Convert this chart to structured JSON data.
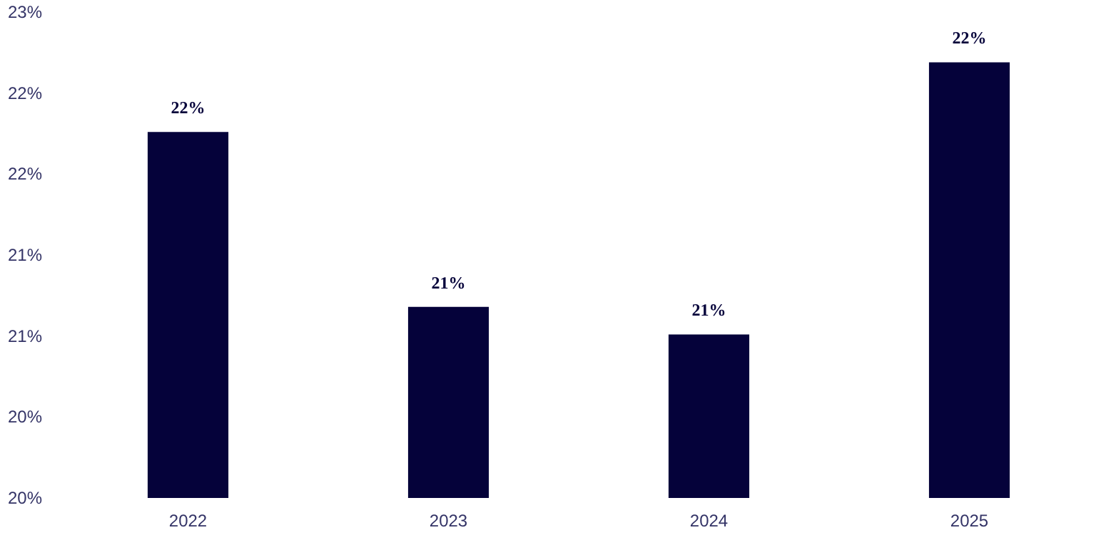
{
  "chart_data": {
    "type": "bar",
    "categories": [
      "2022",
      "2023",
      "2024",
      "2025"
    ],
    "values": [
      22.06,
      20.98,
      20.81,
      22.49
    ],
    "value_labels": [
      "22%",
      "21%",
      "21%",
      "22%"
    ],
    "color": "#05023a",
    "ylim": [
      19.8,
      22.8
    ],
    "yticks": [
      {
        "value": 19.8,
        "label": "20%"
      },
      {
        "value": 20.3,
        "label": "20%"
      },
      {
        "value": 20.8,
        "label": "21%"
      },
      {
        "value": 21.3,
        "label": "21%"
      },
      {
        "value": 21.8,
        "label": "22%"
      },
      {
        "value": 22.3,
        "label": "22%"
      },
      {
        "value": 22.8,
        "label": "23%"
      }
    ],
    "grid": false
  }
}
